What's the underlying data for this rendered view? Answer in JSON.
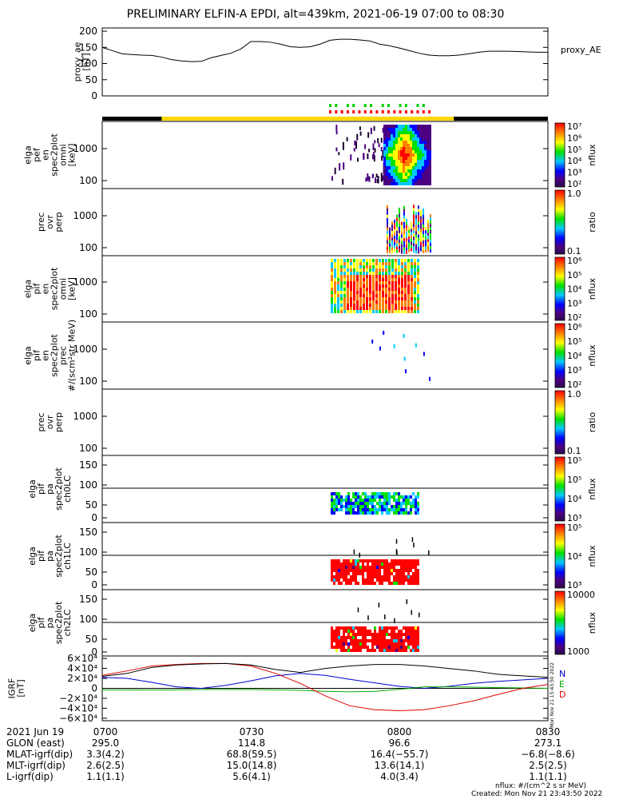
{
  "title": "PRELIMINARY ELFIN-A EPDI, alt=439km, 2021-06-19 07:00 to 08:30",
  "chart_data": [
    {
      "type": "line",
      "panel": "proxy_ae",
      "ylabel": [
        "proxy_ae",
        "[nT]"
      ],
      "yticks": [
        "200",
        "150",
        "100",
        "50",
        "0"
      ],
      "ylim": [
        0,
        210
      ],
      "legend": "proxy_AE",
      "x_minutes": [
        0,
        2,
        4,
        6,
        8,
        10,
        12,
        14,
        16,
        18,
        20,
        22,
        24,
        26,
        28,
        30,
        32,
        34,
        36,
        38,
        40,
        42,
        44,
        46,
        48,
        50,
        52,
        54,
        56,
        58,
        60,
        62,
        64,
        66,
        68,
        70,
        72,
        74,
        76,
        78,
        80,
        82,
        84,
        86,
        88,
        90
      ],
      "values": [
        150,
        140,
        130,
        128,
        126,
        125,
        120,
        112,
        108,
        106,
        107,
        118,
        125,
        132,
        145,
        168,
        168,
        166,
        160,
        152,
        150,
        152,
        160,
        172,
        175,
        175,
        173,
        170,
        160,
        155,
        148,
        140,
        132,
        126,
        124,
        124,
        126,
        130,
        135,
        138,
        138,
        138,
        137,
        136,
        135,
        135
      ]
    },
    {
      "type": "heatmap",
      "panel": "elfin-ephemeris-bar",
      "labels": []
    },
    {
      "type": "heatmap",
      "panel": "elga-pef-en-spec2plot-omni",
      "ylabel": [
        "elga",
        "pef",
        "en",
        "spec2plot",
        "omni",
        "[keV]"
      ],
      "yticks": [
        "1000",
        "100"
      ],
      "colorbar": {
        "label": "nflux",
        "ticks": [
          "10⁷",
          "10⁶",
          "10⁵",
          "10⁴",
          "10³",
          "10²"
        ]
      }
    },
    {
      "type": "heatmap",
      "panel": "prec-ovr-perp-1",
      "ylabel": [
        "prec",
        "ovr",
        "perp"
      ],
      "yticks": [
        "1000",
        "100"
      ],
      "colorbar": {
        "label": "ratio",
        "ticks": [
          "1.0",
          "0.1"
        ]
      }
    },
    {
      "type": "heatmap",
      "panel": "elga-pif-en-spec2plot-omni",
      "ylabel": [
        "elga",
        "pif",
        "en",
        "spec2plot",
        "omni",
        "[keV]"
      ],
      "yticks": [
        "1000",
        "100"
      ],
      "colorbar": {
        "label": "nflux",
        "ticks": [
          "10⁶",
          "10⁵",
          "10⁴",
          "10³",
          "10²"
        ]
      }
    },
    {
      "type": "heatmap",
      "panel": "elga-pif-en-spec2plot-prec",
      "ylabel": [
        "elga",
        "pif",
        "en",
        "spec2plot",
        "prec",
        "#/(scm²str MeV)"
      ],
      "yticks": [
        "1000",
        "100"
      ],
      "colorbar": {
        "label": "nflux",
        "ticks": [
          "10⁶",
          "10⁵",
          "10⁴",
          "10³",
          "10²"
        ]
      }
    },
    {
      "type": "heatmap",
      "panel": "prec-ovr-perp-2",
      "ylabel": [
        "prec",
        "ovr",
        "perp"
      ],
      "yticks": [
        "1000",
        "100"
      ],
      "colorbar": {
        "label": "ratio",
        "ticks": [
          "1.0",
          "0.1"
        ]
      }
    },
    {
      "type": "heatmap",
      "panel": "elga-pif-pa-spec2plot-ch0LC",
      "ylabel": [
        "elga",
        "pif",
        "pa",
        "spec2plot",
        "ch0LC"
      ],
      "yticks": [
        "150",
        "100",
        "50",
        "0"
      ],
      "colorbar": {
        "label": "nflux",
        "ticks": [
          "10⁵",
          "10⁵",
          "10⁴",
          "10³"
        ]
      }
    },
    {
      "type": "heatmap",
      "panel": "elga-pif-pa-spec2plot-ch1LC",
      "ylabel": [
        "elga",
        "pif",
        "pa",
        "spec2plot",
        "ch1LC"
      ],
      "yticks": [
        "150",
        "100",
        "50",
        "0"
      ],
      "colorbar": {
        "label": "nflux",
        "ticks": [
          "10⁵",
          "10⁴",
          "10³"
        ]
      }
    },
    {
      "type": "heatmap",
      "panel": "elga-pif-pa-spec2plot-ch2LC",
      "ylabel": [
        "elga",
        "pif",
        "pa",
        "spec2plot",
        "ch2LC"
      ],
      "yticks": [
        "150",
        "100",
        "50",
        "0"
      ],
      "colorbar": {
        "label": "nflux",
        "ticks": [
          "10000",
          "1000"
        ]
      }
    },
    {
      "type": "line",
      "panel": "igrf",
      "ylabel": [
        "IGRF",
        "[nT]"
      ],
      "yticks": [
        "6×10⁴",
        "4×10⁴",
        "2×10⁴",
        "0",
        "−2×10⁴",
        "−4×10⁴",
        "−6×10⁴"
      ],
      "ylim": [
        -65000,
        65000
      ],
      "legend": [
        "N",
        "E",
        "D"
      ],
      "x_minutes": [
        0,
        5,
        10,
        15,
        20,
        25,
        30,
        35,
        40,
        45,
        50,
        55,
        60,
        65,
        70,
        75,
        80,
        85,
        90
      ],
      "series": [
        {
          "name": "N",
          "color": "#0000cc",
          "values": [
            22000,
            20000,
            12000,
            3000,
            0,
            6000,
            15000,
            25000,
            30000,
            26000,
            18000,
            11000,
            4000,
            0,
            4000,
            10000,
            14000,
            17000,
            20000
          ]
        },
        {
          "name": "E",
          "color": "#00aa00",
          "values": [
            -3000,
            -3000,
            -3500,
            -3000,
            -2500,
            -2500,
            -2500,
            -3000,
            -4000,
            -6000,
            -7000,
            -6000,
            -2000,
            3000,
            3000,
            2500,
            1500,
            800,
            0
          ]
        },
        {
          "name": "D",
          "color": "#dd0000",
          "values": [
            26000,
            35000,
            45000,
            48000,
            50000,
            50000,
            45000,
            30000,
            10000,
            -15000,
            -35000,
            -43000,
            -45000,
            -43000,
            -35000,
            -25000,
            -12000,
            0,
            8000
          ]
        },
        {
          "name": "",
          "color": "#000000",
          "values": [
            24000,
            30000,
            42000,
            47000,
            49000,
            50000,
            47000,
            38000,
            32000,
            40000,
            45000,
            48000,
            48000,
            45000,
            40000,
            35000,
            28000,
            25000,
            22000
          ]
        }
      ],
      "side_text": "Mon Nov 21 15:43:50 2022"
    }
  ],
  "footer": {
    "time_row": {
      "label": "2021 Jun 19",
      "values": [
        "0700",
        "0730",
        "0800",
        "0830"
      ]
    },
    "rows": [
      {
        "label": "GLON (east)",
        "values": [
          "295.0",
          "114.8",
          "96.6",
          "273.1"
        ]
      },
      {
        "label": "MLAT-igrf(dip)",
        "values": [
          "3.3(4.2)",
          "68.8(59.5)",
          "16.4(−55.7)",
          "−6.8(−8.6)"
        ]
      },
      {
        "label": "MLT-igrf(dip)",
        "values": [
          "2.6(2.5)",
          "15.0(14.8)",
          "13.6(14.1)",
          "2.5(2.5)"
        ]
      },
      {
        "label": "L-igrf(dip)",
        "values": [
          "1.1(1.1)",
          "5.6(4.1)",
          "4.0(3.4)",
          "1.1(1.1)"
        ]
      }
    ],
    "units_note": "nflux: #/(cm^2 s sr MeV)",
    "created": "Created: Mon Nov 21 23:43:50 2022"
  }
}
